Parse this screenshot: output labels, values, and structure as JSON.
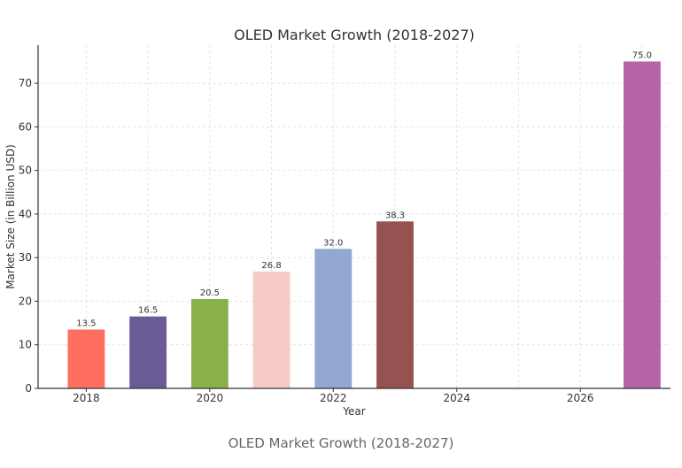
{
  "chart_data": {
    "type": "bar",
    "title": "OLED Market Growth (2018-2027)",
    "xlabel": "Year",
    "ylabel": "Market Size (in Billion USD)",
    "x": [
      2018,
      2019,
      2020,
      2021,
      2022,
      2023,
      2027
    ],
    "values": [
      13.5,
      16.5,
      20.5,
      26.8,
      32.0,
      38.3,
      75.0
    ],
    "data_labels": [
      "13.5",
      "16.5",
      "20.5",
      "26.8",
      "32.0",
      "38.3",
      "75.0"
    ],
    "colors": [
      "#ff6f61",
      "#6b5b95",
      "#88b04b",
      "#f7cac9",
      "#92a8d1",
      "#955251",
      "#b565a7"
    ],
    "xticks": [
      "2018",
      "2020",
      "2022",
      "2024",
      "2026"
    ],
    "yticks": [
      "0",
      "10",
      "20",
      "30",
      "40",
      "50",
      "60",
      "70"
    ],
    "xlim": [
      2017.22,
      2027.46
    ],
    "ylim": [
      0,
      78.75
    ],
    "grid": true,
    "legend": "none"
  },
  "caption": "OLED Market Growth (2018-2027)"
}
